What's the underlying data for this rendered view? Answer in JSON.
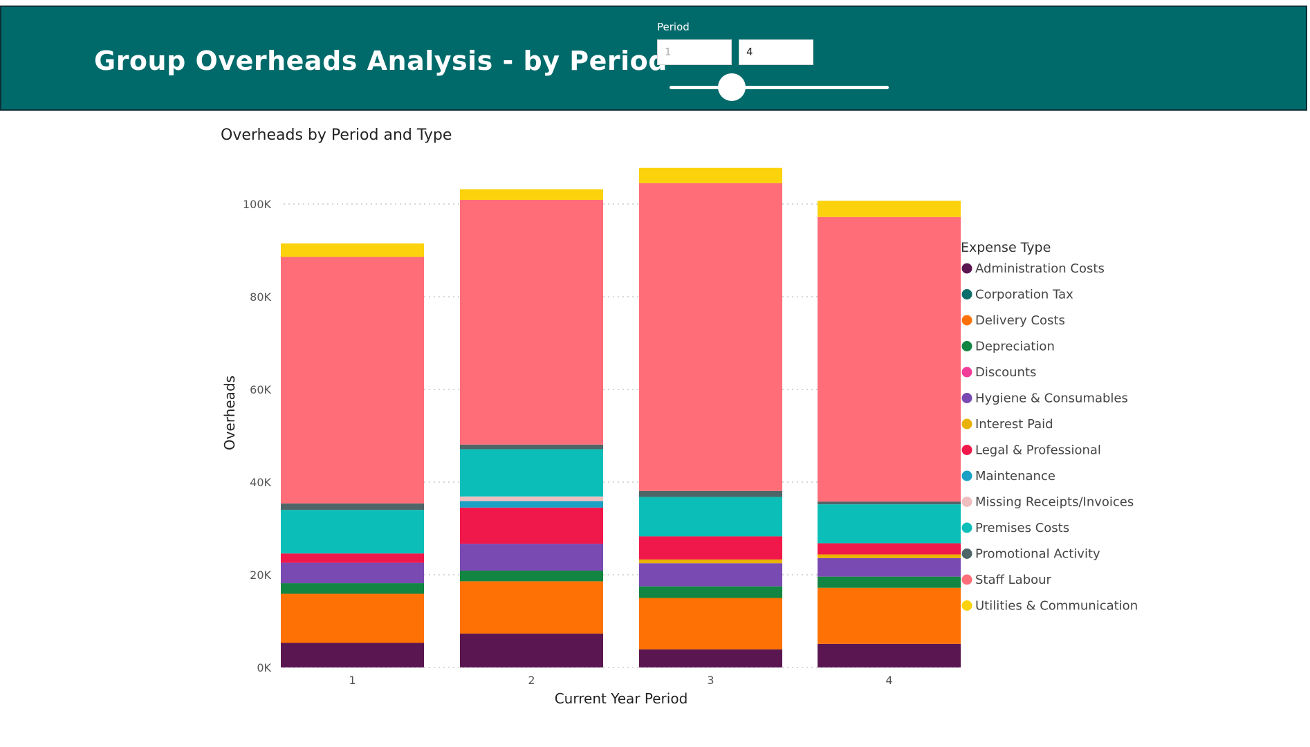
{
  "header": {
    "title": "Group Overheads Analysis - by Period",
    "slicer": {
      "label": "Period",
      "start_value": "1",
      "end_value": "4",
      "range": [
        1,
        4
      ]
    }
  },
  "colors": {
    "header_bg": "#006a6a",
    "Administration Costs": "#5a1650",
    "Corporation Tax": "#0c6e6a",
    "Delivery Costs": "#fe7205",
    "Depreciation": "#128542",
    "Discounts": "#f23c9a",
    "Hygiene & Consumables": "#7a4ab3",
    "Interest Paid": "#e9b202",
    "Legal & Professional": "#f0184a",
    "Maintenance": "#1aa1c5",
    "Missing Receipts/Invoices": "#efbfc0",
    "Premises Costs": "#0bbfb8",
    "Promotional Activity": "#4f6668",
    "Staff Labour": "#fe6d78",
    "Utilities & Communication": "#fbd20b"
  },
  "chart_data": {
    "type": "bar",
    "stacked": true,
    "title": "Overheads by Period and Type",
    "xlabel": "Current Year Period",
    "ylabel": "Overheads",
    "categories": [
      "1",
      "2",
      "3",
      "4"
    ],
    "ylim": [
      0,
      100000
    ],
    "yticks": [
      0,
      20000,
      40000,
      60000,
      80000,
      100000
    ],
    "ytick_labels": [
      "0K",
      "20K",
      "40K",
      "60K",
      "80K",
      "100K"
    ],
    "grid": true,
    "legend_title": "Expense Type",
    "legend_position": "right",
    "series": [
      {
        "name": "Administration Costs",
        "values": [
          5300,
          7300,
          3900,
          5100
        ],
        "labels": [
          "5K",
          "7K",
          "4K",
          "5K"
        ]
      },
      {
        "name": "Corporation Tax",
        "values": [
          0,
          0,
          0,
          0
        ],
        "labels": [
          "",
          "",
          "",
          ""
        ]
      },
      {
        "name": "Delivery Costs",
        "values": [
          10600,
          11300,
          11100,
          12100
        ],
        "labels": [
          "11K",
          "11K",
          "11K",
          "12K"
        ]
      },
      {
        "name": "Depreciation",
        "values": [
          2300,
          2300,
          2500,
          2400
        ],
        "labels": [
          "",
          "",
          "",
          ""
        ]
      },
      {
        "name": "Discounts",
        "values": [
          0,
          0,
          0,
          0
        ],
        "labels": [
          "",
          "",
          "",
          ""
        ]
      },
      {
        "name": "Hygiene & Consumables",
        "values": [
          4400,
          5800,
          5000,
          4000
        ],
        "labels": [
          "4K",
          "6K",
          "5K",
          "4K"
        ]
      },
      {
        "name": "Interest Paid",
        "values": [
          0,
          0,
          800,
          800
        ],
        "labels": [
          "",
          "",
          "",
          ""
        ]
      },
      {
        "name": "Legal & Professional",
        "values": [
          2000,
          7800,
          5000,
          2400
        ],
        "labels": [
          "",
          "8K",
          "5K",
          ""
        ]
      },
      {
        "name": "Maintenance",
        "values": [
          0,
          1400,
          0,
          0
        ],
        "labels": [
          "",
          "",
          "",
          ""
        ]
      },
      {
        "name": "Missing Receipts/Invoices",
        "values": [
          0,
          1000,
          0,
          0
        ],
        "labels": [
          "",
          "",
          "",
          ""
        ]
      },
      {
        "name": "Premises Costs",
        "values": [
          9400,
          10200,
          8500,
          8400
        ],
        "labels": [
          "9K",
          "10K",
          "8K",
          "8K"
        ]
      },
      {
        "name": "Promotional Activity",
        "values": [
          1400,
          1000,
          1300,
          600
        ],
        "labels": [
          "",
          "",
          "",
          ""
        ]
      },
      {
        "name": "Staff Labour",
        "values": [
          53200,
          52800,
          66400,
          61400
        ],
        "labels": [
          "53K",
          "53K",
          "66K",
          "61K"
        ]
      },
      {
        "name": "Utilities & Communication",
        "values": [
          2900,
          2300,
          3300,
          3500
        ],
        "labels": [
          "",
          "",
          "",
          "4K"
        ]
      }
    ]
  }
}
